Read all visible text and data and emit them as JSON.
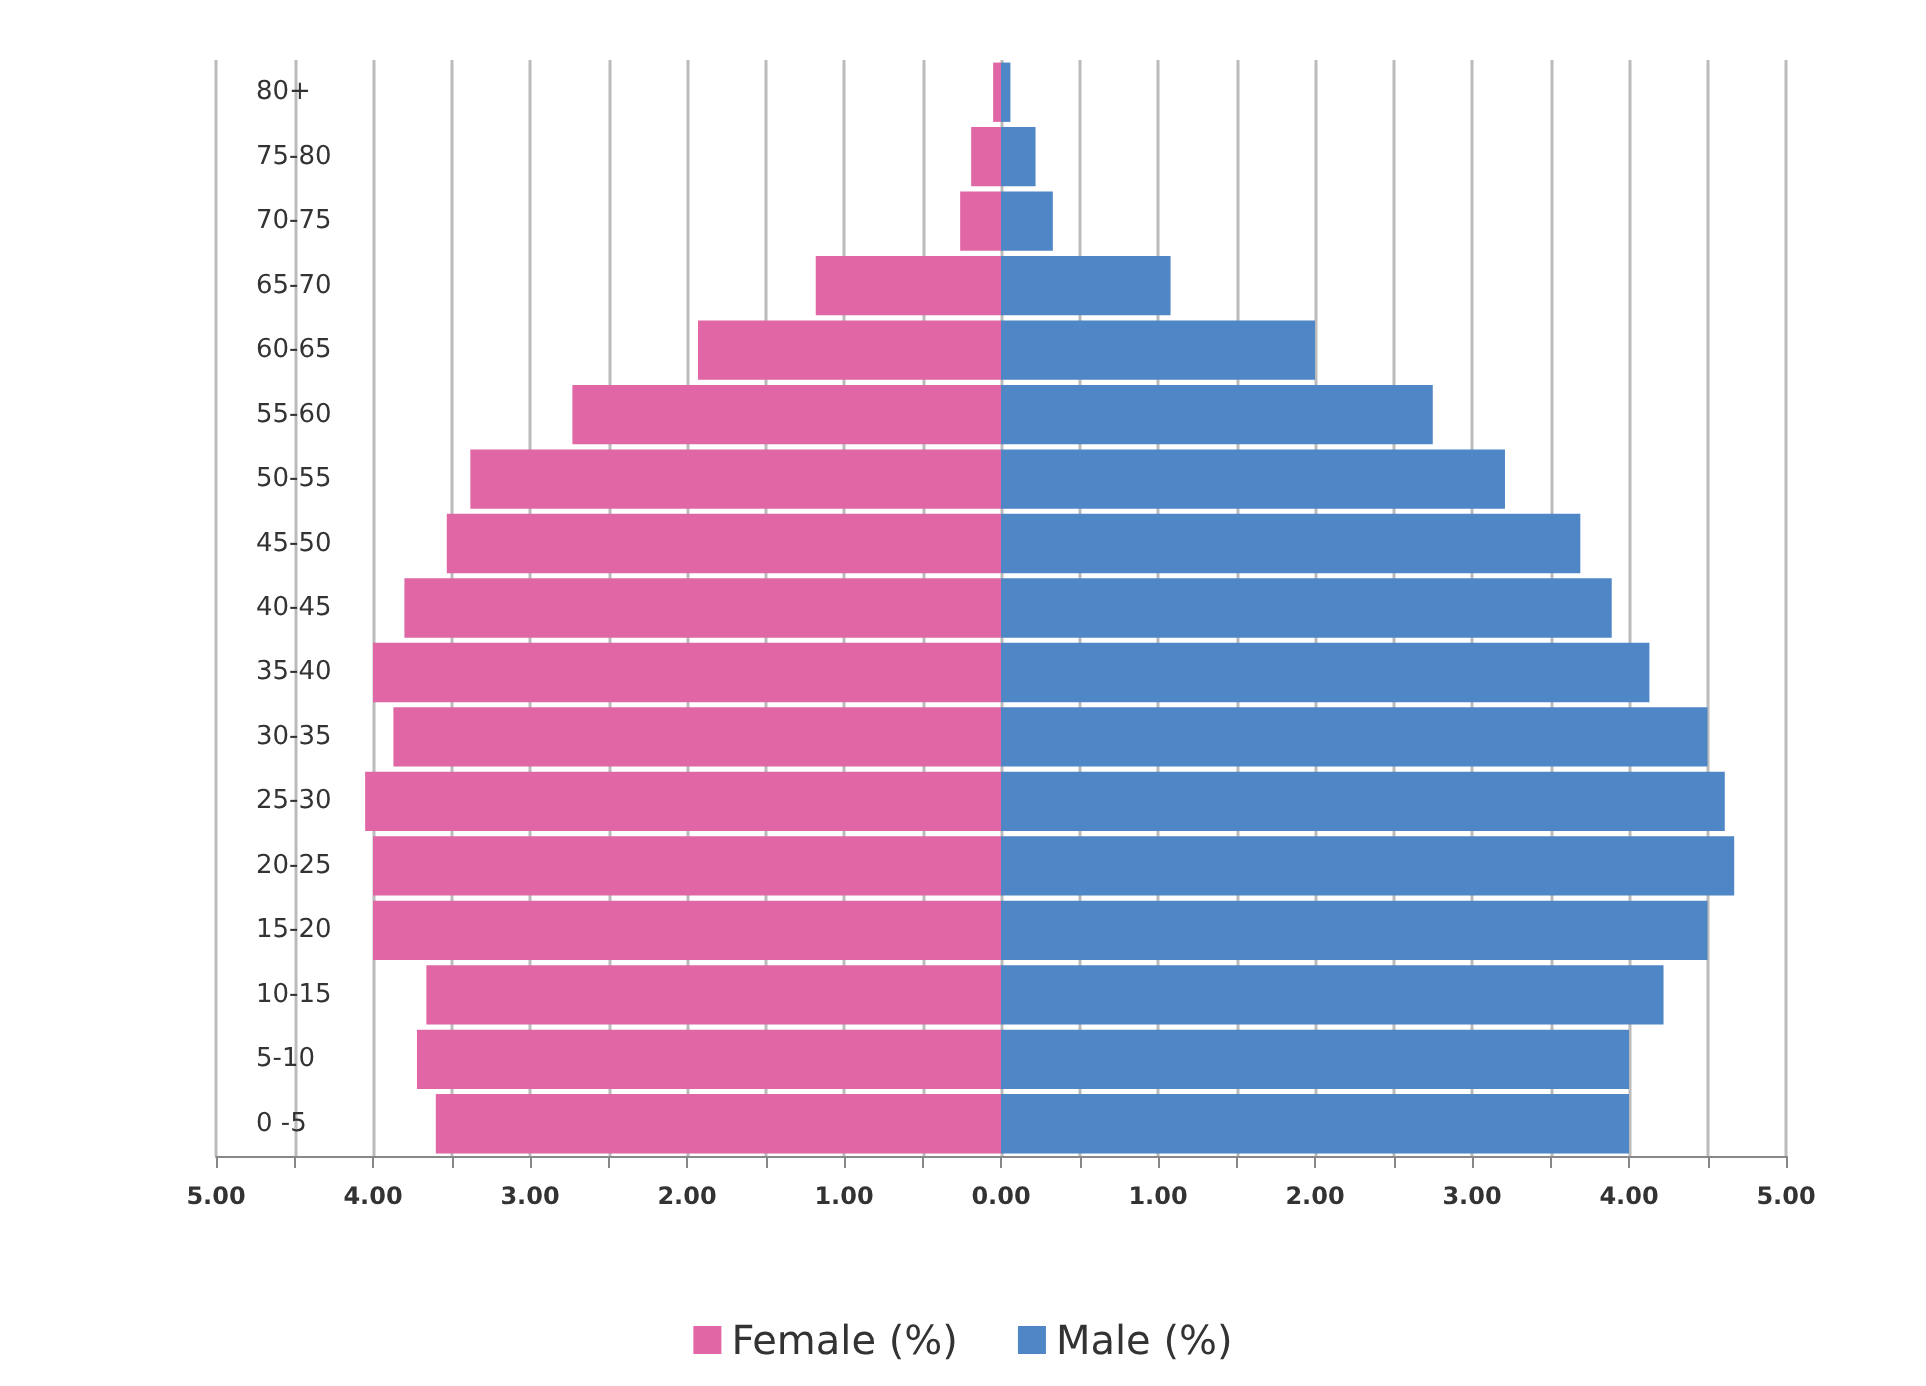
{
  "chart_data": {
    "type": "bar",
    "orientation": "horizontal",
    "categories": [
      "80+",
      "75-80",
      "70-75",
      "65-70",
      "60-65",
      "55-60",
      "50-55",
      "45-50",
      "40-45",
      "35-40",
      "30-35",
      "25-30",
      "20-25",
      "15-20",
      "10-15",
      "5-10",
      "0 -5"
    ],
    "series": [
      {
        "name": "Female (%)",
        "color": "#e066a6",
        "values": [
          -0.05,
          -0.19,
          -0.26,
          -1.18,
          -1.93,
          -2.73,
          -3.38,
          -3.53,
          -3.8,
          -4.0,
          -3.87,
          -4.05,
          -4.0,
          -4.0,
          -3.66,
          -3.72,
          -3.6
        ]
      },
      {
        "name": "Male (%)",
        "color": "#4f86c6",
        "values": [
          0.06,
          0.22,
          0.33,
          1.08,
          2.0,
          2.75,
          3.21,
          3.69,
          3.89,
          4.13,
          4.5,
          4.61,
          4.67,
          4.5,
          4.22,
          4.0,
          4.0
        ]
      }
    ],
    "xlim": [
      -5,
      5
    ],
    "xticks": [
      {
        "value": -5,
        "label": "5.00"
      },
      {
        "value": -4.5,
        "label": null
      },
      {
        "value": -4,
        "label": "4.00"
      },
      {
        "value": -3.5,
        "label": null
      },
      {
        "value": -3,
        "label": "3.00"
      },
      {
        "value": -2.5,
        "label": null
      },
      {
        "value": -2,
        "label": "2.00"
      },
      {
        "value": -1.5,
        "label": null
      },
      {
        "value": -1,
        "label": "1.00"
      },
      {
        "value": -0.5,
        "label": null
      },
      {
        "value": 0,
        "label": "0.00"
      },
      {
        "value": 0.5,
        "label": null
      },
      {
        "value": 1,
        "label": "1.00"
      },
      {
        "value": 1.5,
        "label": null
      },
      {
        "value": 2,
        "label": "2.00"
      },
      {
        "value": 2.5,
        "label": null
      },
      {
        "value": 3,
        "label": "3.00"
      },
      {
        "value": 3.5,
        "label": null
      },
      {
        "value": 4,
        "label": "4.00"
      },
      {
        "value": 4.5,
        "label": null
      },
      {
        "value": 5,
        "label": "5.00"
      }
    ],
    "grid": "x",
    "legend": "bottom",
    "stacked": true
  }
}
